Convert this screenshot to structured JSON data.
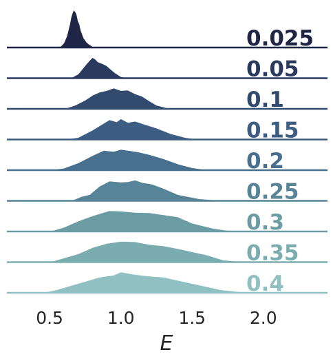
{
  "chart_data": {
    "type": "area",
    "xlabel": "E",
    "xlim": [
      0.2,
      2.45
    ],
    "xticks": [
      "0.5",
      "1.0",
      "1.5",
      "2.0"
    ],
    "xtick_values": [
      0.5,
      1.0,
      1.5,
      2.0
    ],
    "grid": false,
    "series": [
      {
        "name": "0.025",
        "color": "#1f2544",
        "x": [
          0.55,
          0.58,
          0.6,
          0.62,
          0.64,
          0.65,
          0.66,
          0.67,
          0.68,
          0.69,
          0.7,
          0.71,
          0.72,
          0.74,
          0.76,
          0.78,
          0.8,
          0.83
        ],
        "y": [
          0.0,
          0.04,
          0.12,
          0.3,
          0.6,
          0.8,
          0.92,
          1.0,
          0.95,
          0.88,
          0.7,
          0.62,
          0.45,
          0.25,
          0.14,
          0.08,
          0.03,
          0.0
        ]
      },
      {
        "name": "0.05",
        "color": "#2a3a5f",
        "x": [
          0.62,
          0.66,
          0.7,
          0.73,
          0.76,
          0.78,
          0.8,
          0.82,
          0.84,
          0.87,
          0.9,
          0.93,
          0.96,
          1.0,
          1.05
        ],
        "y": [
          0.0,
          0.05,
          0.2,
          0.45,
          0.7,
          0.85,
          1.0,
          0.92,
          0.78,
          0.7,
          0.6,
          0.42,
          0.25,
          0.08,
          0.0
        ]
      },
      {
        "name": "0.1",
        "color": "#324a6e",
        "x": [
          0.6,
          0.68,
          0.75,
          0.8,
          0.85,
          0.9,
          0.95,
          1.0,
          1.05,
          1.1,
          1.15,
          1.2,
          1.25,
          1.35
        ],
        "y": [
          0.0,
          0.18,
          0.42,
          0.65,
          0.8,
          0.88,
          1.0,
          0.88,
          0.9,
          0.72,
          0.6,
          0.38,
          0.18,
          0.0
        ]
      },
      {
        "name": "0.15",
        "color": "#3d5d82",
        "x": [
          0.6,
          0.7,
          0.8,
          0.86,
          0.92,
          0.97,
          1.0,
          1.05,
          1.1,
          1.17,
          1.25,
          1.35,
          1.45,
          1.55
        ],
        "y": [
          0.0,
          0.1,
          0.45,
          0.7,
          0.95,
          0.85,
          1.0,
          0.82,
          0.88,
          0.72,
          0.55,
          0.28,
          0.1,
          0.0
        ]
      },
      {
        "name": "0.2",
        "color": "#48708e",
        "x": [
          0.5,
          0.6,
          0.7,
          0.8,
          0.88,
          0.95,
          1.0,
          1.05,
          1.12,
          1.2,
          1.3,
          1.4,
          1.5,
          1.62
        ],
        "y": [
          0.0,
          0.1,
          0.35,
          0.7,
          0.95,
          0.9,
          1.0,
          0.95,
          0.88,
          0.75,
          0.55,
          0.3,
          0.12,
          0.0
        ]
      },
      {
        "name": "0.25",
        "color": "#578496",
        "x": [
          0.65,
          0.72,
          0.78,
          0.85,
          0.92,
          1.0,
          1.05,
          1.1,
          1.15,
          1.22,
          1.3,
          1.4,
          1.55,
          1.75
        ],
        "y": [
          0.0,
          0.2,
          0.3,
          0.7,
          0.95,
          0.9,
          0.92,
          1.0,
          0.88,
          0.8,
          0.6,
          0.3,
          0.1,
          0.0
        ]
      },
      {
        "name": "0.3",
        "color": "#6b9ca4",
        "x": [
          0.5,
          0.6,
          0.7,
          0.8,
          0.92,
          1.0,
          1.1,
          1.2,
          1.3,
          1.4,
          1.5,
          1.65,
          1.8
        ],
        "y": [
          0.0,
          0.2,
          0.5,
          0.75,
          1.0,
          0.98,
          0.92,
          0.9,
          0.8,
          0.7,
          0.4,
          0.15,
          0.0
        ]
      },
      {
        "name": "0.35",
        "color": "#7badb0",
        "x": [
          0.5,
          0.6,
          0.7,
          0.8,
          0.9,
          1.0,
          1.1,
          1.2,
          1.3,
          1.4,
          1.5,
          1.6,
          1.72,
          1.9
        ],
        "y": [
          0.0,
          0.2,
          0.4,
          0.7,
          0.9,
          1.0,
          0.98,
          0.85,
          0.78,
          0.65,
          0.5,
          0.35,
          0.1,
          0.0
        ]
      },
      {
        "name": "0.4",
        "color": "#90c0c2",
        "x": [
          0.45,
          0.55,
          0.65,
          0.75,
          0.85,
          0.95,
          1.0,
          1.1,
          1.2,
          1.3,
          1.4,
          1.5,
          1.6,
          1.7,
          1.9
        ],
        "y": [
          0.0,
          0.15,
          0.35,
          0.55,
          0.75,
          0.85,
          1.0,
          0.88,
          0.8,
          0.75,
          0.6,
          0.45,
          0.3,
          0.15,
          0.0
        ]
      }
    ]
  }
}
